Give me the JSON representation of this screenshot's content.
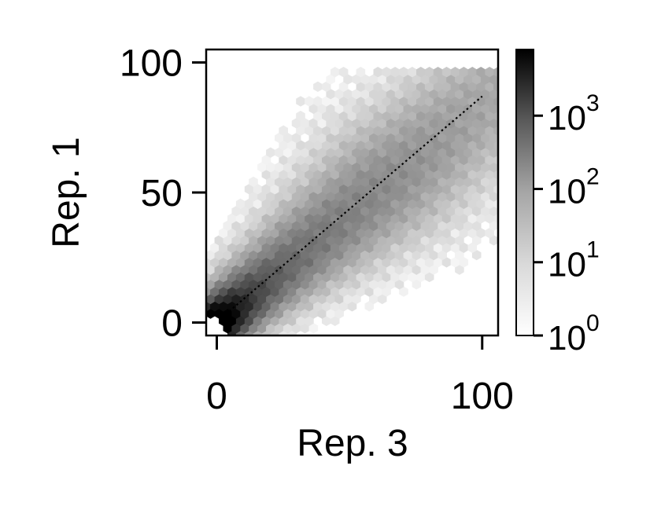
{
  "chart_data": {
    "type": "heatmap",
    "subtype": "hexbin",
    "xlabel": "Rep. 3",
    "ylabel": "Rep. 1",
    "xlim": [
      -4,
      106
    ],
    "ylim": [
      -5,
      105
    ],
    "x_ticks": [
      0,
      100
    ],
    "x_tick_labels": [
      "0",
      "100"
    ],
    "y_ticks": [
      0,
      50,
      100
    ],
    "y_tick_labels": [
      "0",
      "50",
      "100"
    ],
    "colorbar": {
      "scale": "log",
      "colormap": "Greys",
      "range": [
        1,
        8000
      ],
      "ticks": [
        {
          "value": 1,
          "base": "10",
          "exponent": "0"
        },
        {
          "value": 10,
          "base": "10",
          "exponent": "1"
        },
        {
          "value": 100,
          "base": "10",
          "exponent": "2"
        },
        {
          "value": 1000,
          "base": "10",
          "exponent": "3"
        }
      ]
    },
    "reference_line": {
      "style": "dotted",
      "color": "#000000",
      "from": [
        2,
        2
      ],
      "to": [
        100,
        87
      ]
    },
    "density": {
      "hexes_per_axis": 34,
      "ridge_slope": 0.85,
      "peak_count": 8000,
      "ridge_width": [
        10,
        24
      ],
      "occupied_extent": [
        0,
        104
      ]
    }
  }
}
